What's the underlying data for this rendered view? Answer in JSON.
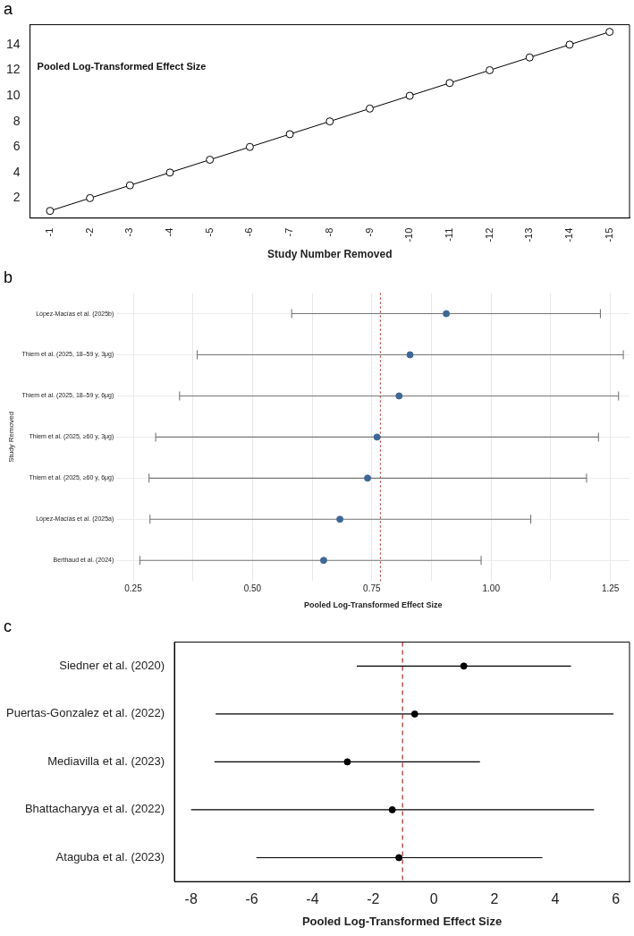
{
  "chart_data": [
    {
      "type": "line",
      "title": "a",
      "xlabel": "Study Number Removed",
      "annotations": [
        "Pooled Log-Transformed Effect Size"
      ],
      "categories": [
        "-1",
        "-2",
        "-3",
        "-4",
        "-5",
        "-6",
        "-7",
        "-8",
        "-9",
        "-10",
        "-11",
        "-12",
        "-13",
        "-14",
        "-15"
      ],
      "series": [
        {
          "color": "#000000",
          "values": [
            1,
            2,
            3,
            4,
            5,
            6,
            7,
            8,
            9,
            10,
            11,
            12,
            13,
            14,
            15
          ]
        }
      ],
      "ylim": [
        0.44,
        15.56
      ],
      "yticks": [
        2,
        4,
        6,
        8,
        10,
        12,
        14
      ],
      "grid": false,
      "legend": false,
      "marker": "circle",
      "line_style": "solid"
    },
    {
      "type": "scatter",
      "orientation": "horizontal",
      "title": "b",
      "xlabel": "Pooled Log-Transformed Effect Size",
      "ylabel": "Study Removed",
      "categories": [
        "López-Macías et al. (2025b)",
        "Thiem et al. (2025, 18–59 y, 3μg)",
        "Thiem et al. (2025, 18–59 y, 6μg)",
        "Thiem et al. (2025, ≥60 y, 3μg)",
        "Thiem et al. (2025, ≥60 y, 6μg)",
        "López-Macías et al. (2025a)",
        "Berthaud et al. (2024)"
      ],
      "series": [
        {
          "color": "#3f6796",
          "values": [
            0.906,
            0.83,
            0.807,
            0.761,
            0.741,
            0.683,
            0.649
          ],
          "errors": [
            [
              0.582,
              1.229
            ],
            [
              0.384,
              1.277
            ],
            [
              0.347,
              1.267
            ],
            [
              0.297,
              1.225
            ],
            [
              0.283,
              1.2
            ],
            [
              0.285,
              1.083
            ],
            [
              0.264,
              0.979
            ]
          ]
        }
      ],
      "xlim": [
        0.215,
        1.29
      ],
      "xticks": [
        0.25,
        {
          "value": 0.375,
          "label": null
        },
        {
          "value": 0.5,
          "label": "0.50"
        },
        {
          "value": 0.625,
          "label": null
        },
        0.75,
        {
          "value": 0.875,
          "label": null
        },
        {
          "value": 1,
          "label": "1.00"
        },
        {
          "value": 1.125,
          "label": null
        },
        1.25
      ],
      "ref_lines": [
        {
          "axis": "x",
          "value": 0.768,
          "color": "#c0392b",
          "line_style": "dotted"
        }
      ],
      "grid": true,
      "legend": false,
      "marker": "circle"
    },
    {
      "type": "scatter",
      "orientation": "horizontal",
      "title": "c",
      "xlabel": "Pooled Log-Transformed Effect Size",
      "categories": [
        "Siedner et al. (2020)",
        "Puertas-Gonzalez et al. (2022)",
        "Mediavilla et al. (2023)",
        "Bhattacharyya et al. (2022)",
        "Ataguba et al. (2023)"
      ],
      "series": [
        {
          "color": "#000000",
          "values": [
            0.99,
            -0.63,
            -2.85,
            -1.37,
            -1.15
          ],
          "errors": [
            [
              -2.54,
              4.52
            ],
            [
              -7.19,
              5.92
            ],
            [
              -7.23,
              1.52
            ],
            [
              -8.0,
              5.28
            ],
            [
              -5.85,
              3.58
            ]
          ]
        }
      ],
      "xlim": [
        -8.55,
        6.45
      ],
      "xticks": [
        -8,
        -6,
        -4,
        -2,
        0,
        2,
        4,
        6
      ],
      "ref_lines": [
        {
          "axis": "x",
          "value": -1.03,
          "color": "#a0302a",
          "line_style": "dashed"
        }
      ],
      "grid": false,
      "legend": false,
      "marker": "circle"
    }
  ]
}
